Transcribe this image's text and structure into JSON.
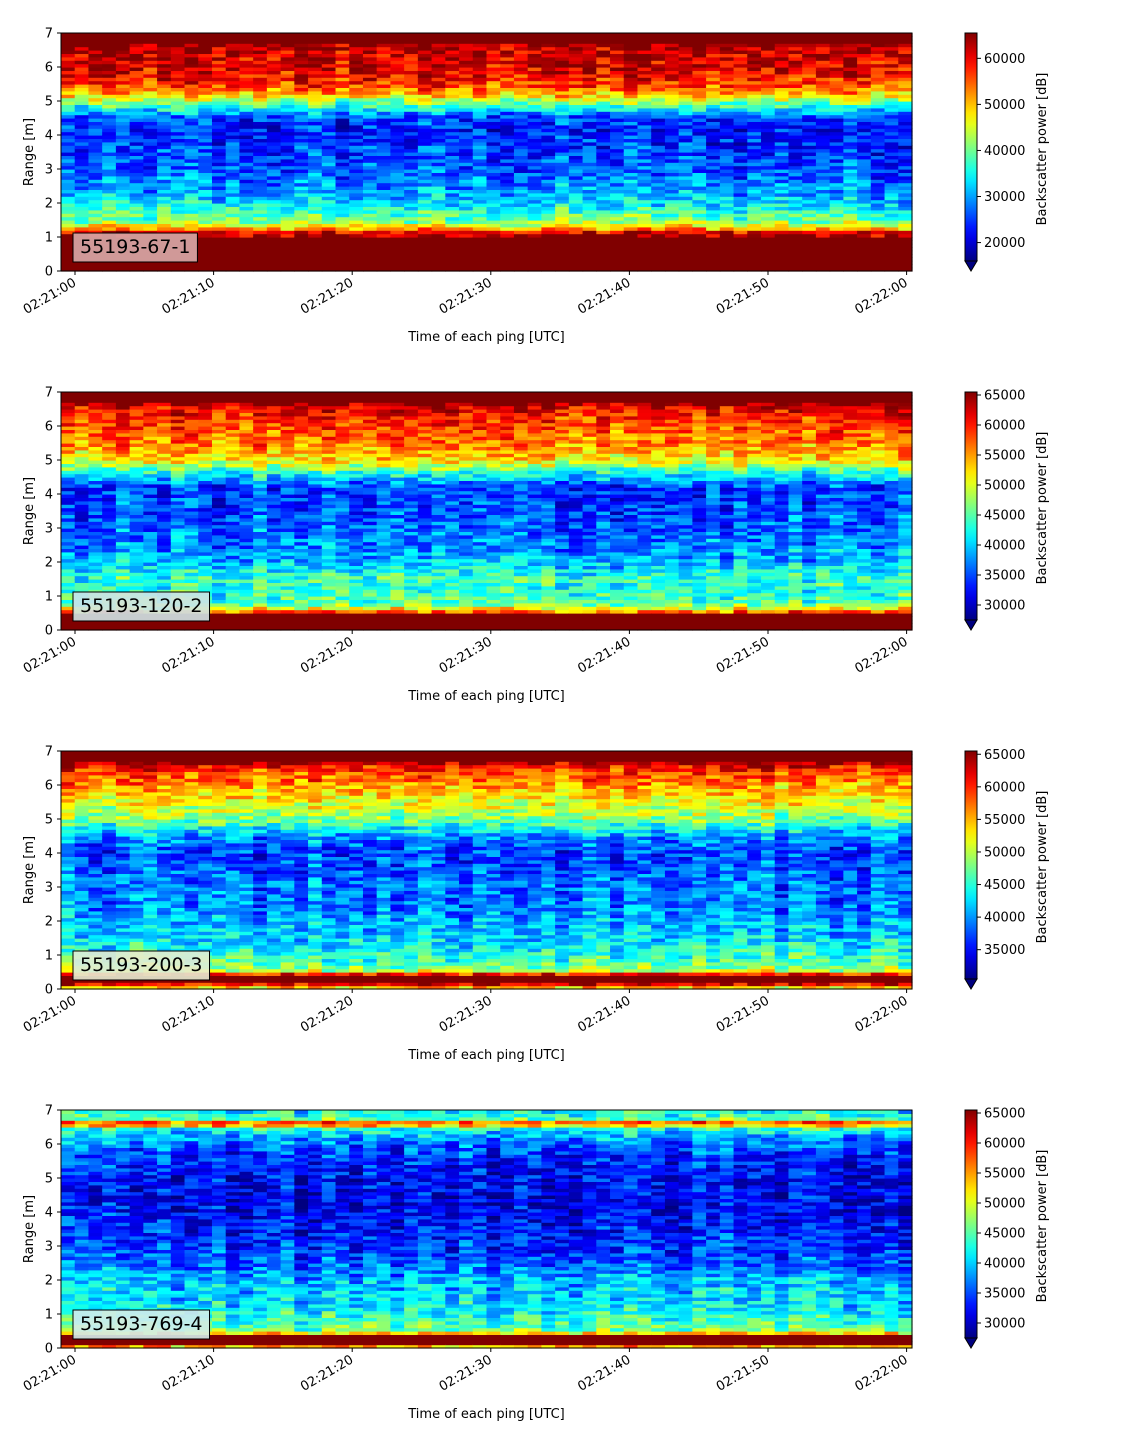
{
  "chart_data": [
    {
      "type": "heatmap",
      "tag": "55193-67-1",
      "tag_box_color": "#d8aaa8",
      "xlabel": "Time of each ping [UTC]",
      "ylabel": "Range [m]",
      "colorbar_label": "Backscatter power [dB]",
      "x_tick_labels": [
        "02:21:00",
        "02:21:10",
        "02:21:20",
        "02:21:30",
        "02:21:40",
        "02:21:50",
        "02:22:00"
      ],
      "y_tick_labels": [
        "0",
        "1",
        "2",
        "3",
        "4",
        "5",
        "6",
        "7"
      ],
      "ylim": [
        0,
        7
      ],
      "colorbar_ticks": [
        20000,
        30000,
        40000,
        50000,
        60000
      ],
      "clim": [
        16000,
        65500
      ],
      "colormap": "jet",
      "colorbar_extend": "min",
      "profile": [
        {
          "range": 0.0,
          "value": 65500
        },
        {
          "range": 0.25,
          "value": 65500
        },
        {
          "range": 1.0,
          "value": 65500
        },
        {
          "range": 1.15,
          "value": 60000
        },
        {
          "range": 1.3,
          "value": 48000
        },
        {
          "range": 1.5,
          "value": 40000
        },
        {
          "range": 1.7,
          "value": 38000
        },
        {
          "range": 2.0,
          "value": 33000
        },
        {
          "range": 2.5,
          "value": 29000
        },
        {
          "range": 3.0,
          "value": 26000
        },
        {
          "range": 3.5,
          "value": 25000
        },
        {
          "range": 4.0,
          "value": 23000
        },
        {
          "range": 4.5,
          "value": 25000
        },
        {
          "range": 4.9,
          "value": 38000
        },
        {
          "range": 5.2,
          "value": 50000
        },
        {
          "range": 5.5,
          "value": 57000
        },
        {
          "range": 6.0,
          "value": 61000
        },
        {
          "range": 6.5,
          "value": 62000
        },
        {
          "range": 6.75,
          "value": 65500
        },
        {
          "range": 7.0,
          "value": 65500
        }
      ]
    },
    {
      "type": "heatmap",
      "tag": "55193-120-2",
      "tag_box_color": "#cfe3e6",
      "xlabel": "Time of each ping [UTC]",
      "ylabel": "Range [m]",
      "colorbar_label": "Backscatter power [dB]",
      "x_tick_labels": [
        "02:21:00",
        "02:21:10",
        "02:21:20",
        "02:21:30",
        "02:21:40",
        "02:21:50",
        "02:22:00"
      ],
      "y_tick_labels": [
        "0",
        "1",
        "2",
        "3",
        "4",
        "5",
        "6",
        "7"
      ],
      "ylim": [
        0,
        7
      ],
      "colorbar_ticks": [
        30000,
        35000,
        40000,
        45000,
        50000,
        55000,
        60000,
        65000
      ],
      "clim": [
        27500,
        65500
      ],
      "colormap": "jet",
      "colorbar_extend": "min",
      "profile": [
        {
          "range": 0.0,
          "value": 65500
        },
        {
          "range": 0.45,
          "value": 65500
        },
        {
          "range": 0.6,
          "value": 52000
        },
        {
          "range": 0.8,
          "value": 45000
        },
        {
          "range": 1.2,
          "value": 43000
        },
        {
          "range": 1.5,
          "value": 44000
        },
        {
          "range": 2.0,
          "value": 39000
        },
        {
          "range": 2.5,
          "value": 37000
        },
        {
          "range": 3.0,
          "value": 36000
        },
        {
          "range": 3.5,
          "value": 35000
        },
        {
          "range": 4.2,
          "value": 34000
        },
        {
          "range": 4.6,
          "value": 42000
        },
        {
          "range": 5.0,
          "value": 52000
        },
        {
          "range": 5.5,
          "value": 56000
        },
        {
          "range": 6.0,
          "value": 58000
        },
        {
          "range": 6.5,
          "value": 61000
        },
        {
          "range": 6.7,
          "value": 65500
        },
        {
          "range": 7.0,
          "value": 65500
        }
      ]
    },
    {
      "type": "heatmap",
      "tag": "55193-200-3",
      "tag_box_color": "#e6ecd2",
      "xlabel": "Time of each ping [UTC]",
      "ylabel": "Range [m]",
      "colorbar_label": "Backscatter power [dB]",
      "x_tick_labels": [
        "02:21:00",
        "02:21:10",
        "02:21:20",
        "02:21:30",
        "02:21:40",
        "02:21:50",
        "02:22:00"
      ],
      "y_tick_labels": [
        "0",
        "1",
        "2",
        "3",
        "4",
        "5",
        "6",
        "7"
      ],
      "ylim": [
        0,
        7
      ],
      "colorbar_ticks": [
        35000,
        40000,
        45000,
        50000,
        55000,
        60000,
        65000
      ],
      "clim": [
        30500,
        65500
      ],
      "colormap": "jet",
      "colorbar_extend": "min",
      "profile": [
        {
          "range": 0.0,
          "value": 50000
        },
        {
          "range": 0.2,
          "value": 65500
        },
        {
          "range": 0.4,
          "value": 65500
        },
        {
          "range": 0.55,
          "value": 50000
        },
        {
          "range": 0.8,
          "value": 46000
        },
        {
          "range": 1.2,
          "value": 44000
        },
        {
          "range": 1.6,
          "value": 42000
        },
        {
          "range": 2.0,
          "value": 41000
        },
        {
          "range": 2.5,
          "value": 39000
        },
        {
          "range": 3.0,
          "value": 39000
        },
        {
          "range": 3.5,
          "value": 38000
        },
        {
          "range": 4.0,
          "value": 37000
        },
        {
          "range": 4.5,
          "value": 40000
        },
        {
          "range": 5.0,
          "value": 48000
        },
        {
          "range": 5.5,
          "value": 52000
        },
        {
          "range": 6.0,
          "value": 56000
        },
        {
          "range": 6.5,
          "value": 60000
        },
        {
          "range": 6.7,
          "value": 65500
        },
        {
          "range": 7.0,
          "value": 65500
        }
      ]
    },
    {
      "type": "heatmap",
      "tag": "55193-769-4",
      "tag_box_color": "#d3ecea",
      "xlabel": "Time of each ping [UTC]",
      "ylabel": "Range [m]",
      "colorbar_label": "Backscatter power [dB]",
      "x_tick_labels": [
        "02:21:00",
        "02:21:10",
        "02:21:20",
        "02:21:30",
        "02:21:40",
        "02:21:50",
        "02:22:00"
      ],
      "y_tick_labels": [
        "0",
        "1",
        "2",
        "3",
        "4",
        "5",
        "6",
        "7"
      ],
      "ylim": [
        0,
        7
      ],
      "colorbar_ticks": [
        30000,
        35000,
        40000,
        45000,
        50000,
        55000,
        60000,
        65000
      ],
      "clim": [
        27500,
        65500
      ],
      "colormap": "jet",
      "colorbar_extend": "min",
      "profile": [
        {
          "range": 0.0,
          "value": 48000
        },
        {
          "range": 0.15,
          "value": 65500
        },
        {
          "range": 0.35,
          "value": 65500
        },
        {
          "range": 0.5,
          "value": 47000
        },
        {
          "range": 0.8,
          "value": 44000
        },
        {
          "range": 1.2,
          "value": 41000
        },
        {
          "range": 1.6,
          "value": 40000
        },
        {
          "range": 2.0,
          "value": 39000
        },
        {
          "range": 2.5,
          "value": 36000
        },
        {
          "range": 3.0,
          "value": 34000
        },
        {
          "range": 3.5,
          "value": 33000
        },
        {
          "range": 4.0,
          "value": 32000
        },
        {
          "range": 4.5,
          "value": 31500
        },
        {
          "range": 5.0,
          "value": 32500
        },
        {
          "range": 5.5,
          "value": 33500
        },
        {
          "range": 6.0,
          "value": 36000
        },
        {
          "range": 6.3,
          "value": 40000
        },
        {
          "range": 6.5,
          "value": 44000
        },
        {
          "range": 6.6,
          "value": 63000
        },
        {
          "range": 6.75,
          "value": 45000
        },
        {
          "range": 7.0,
          "value": 41000
        }
      ]
    }
  ]
}
